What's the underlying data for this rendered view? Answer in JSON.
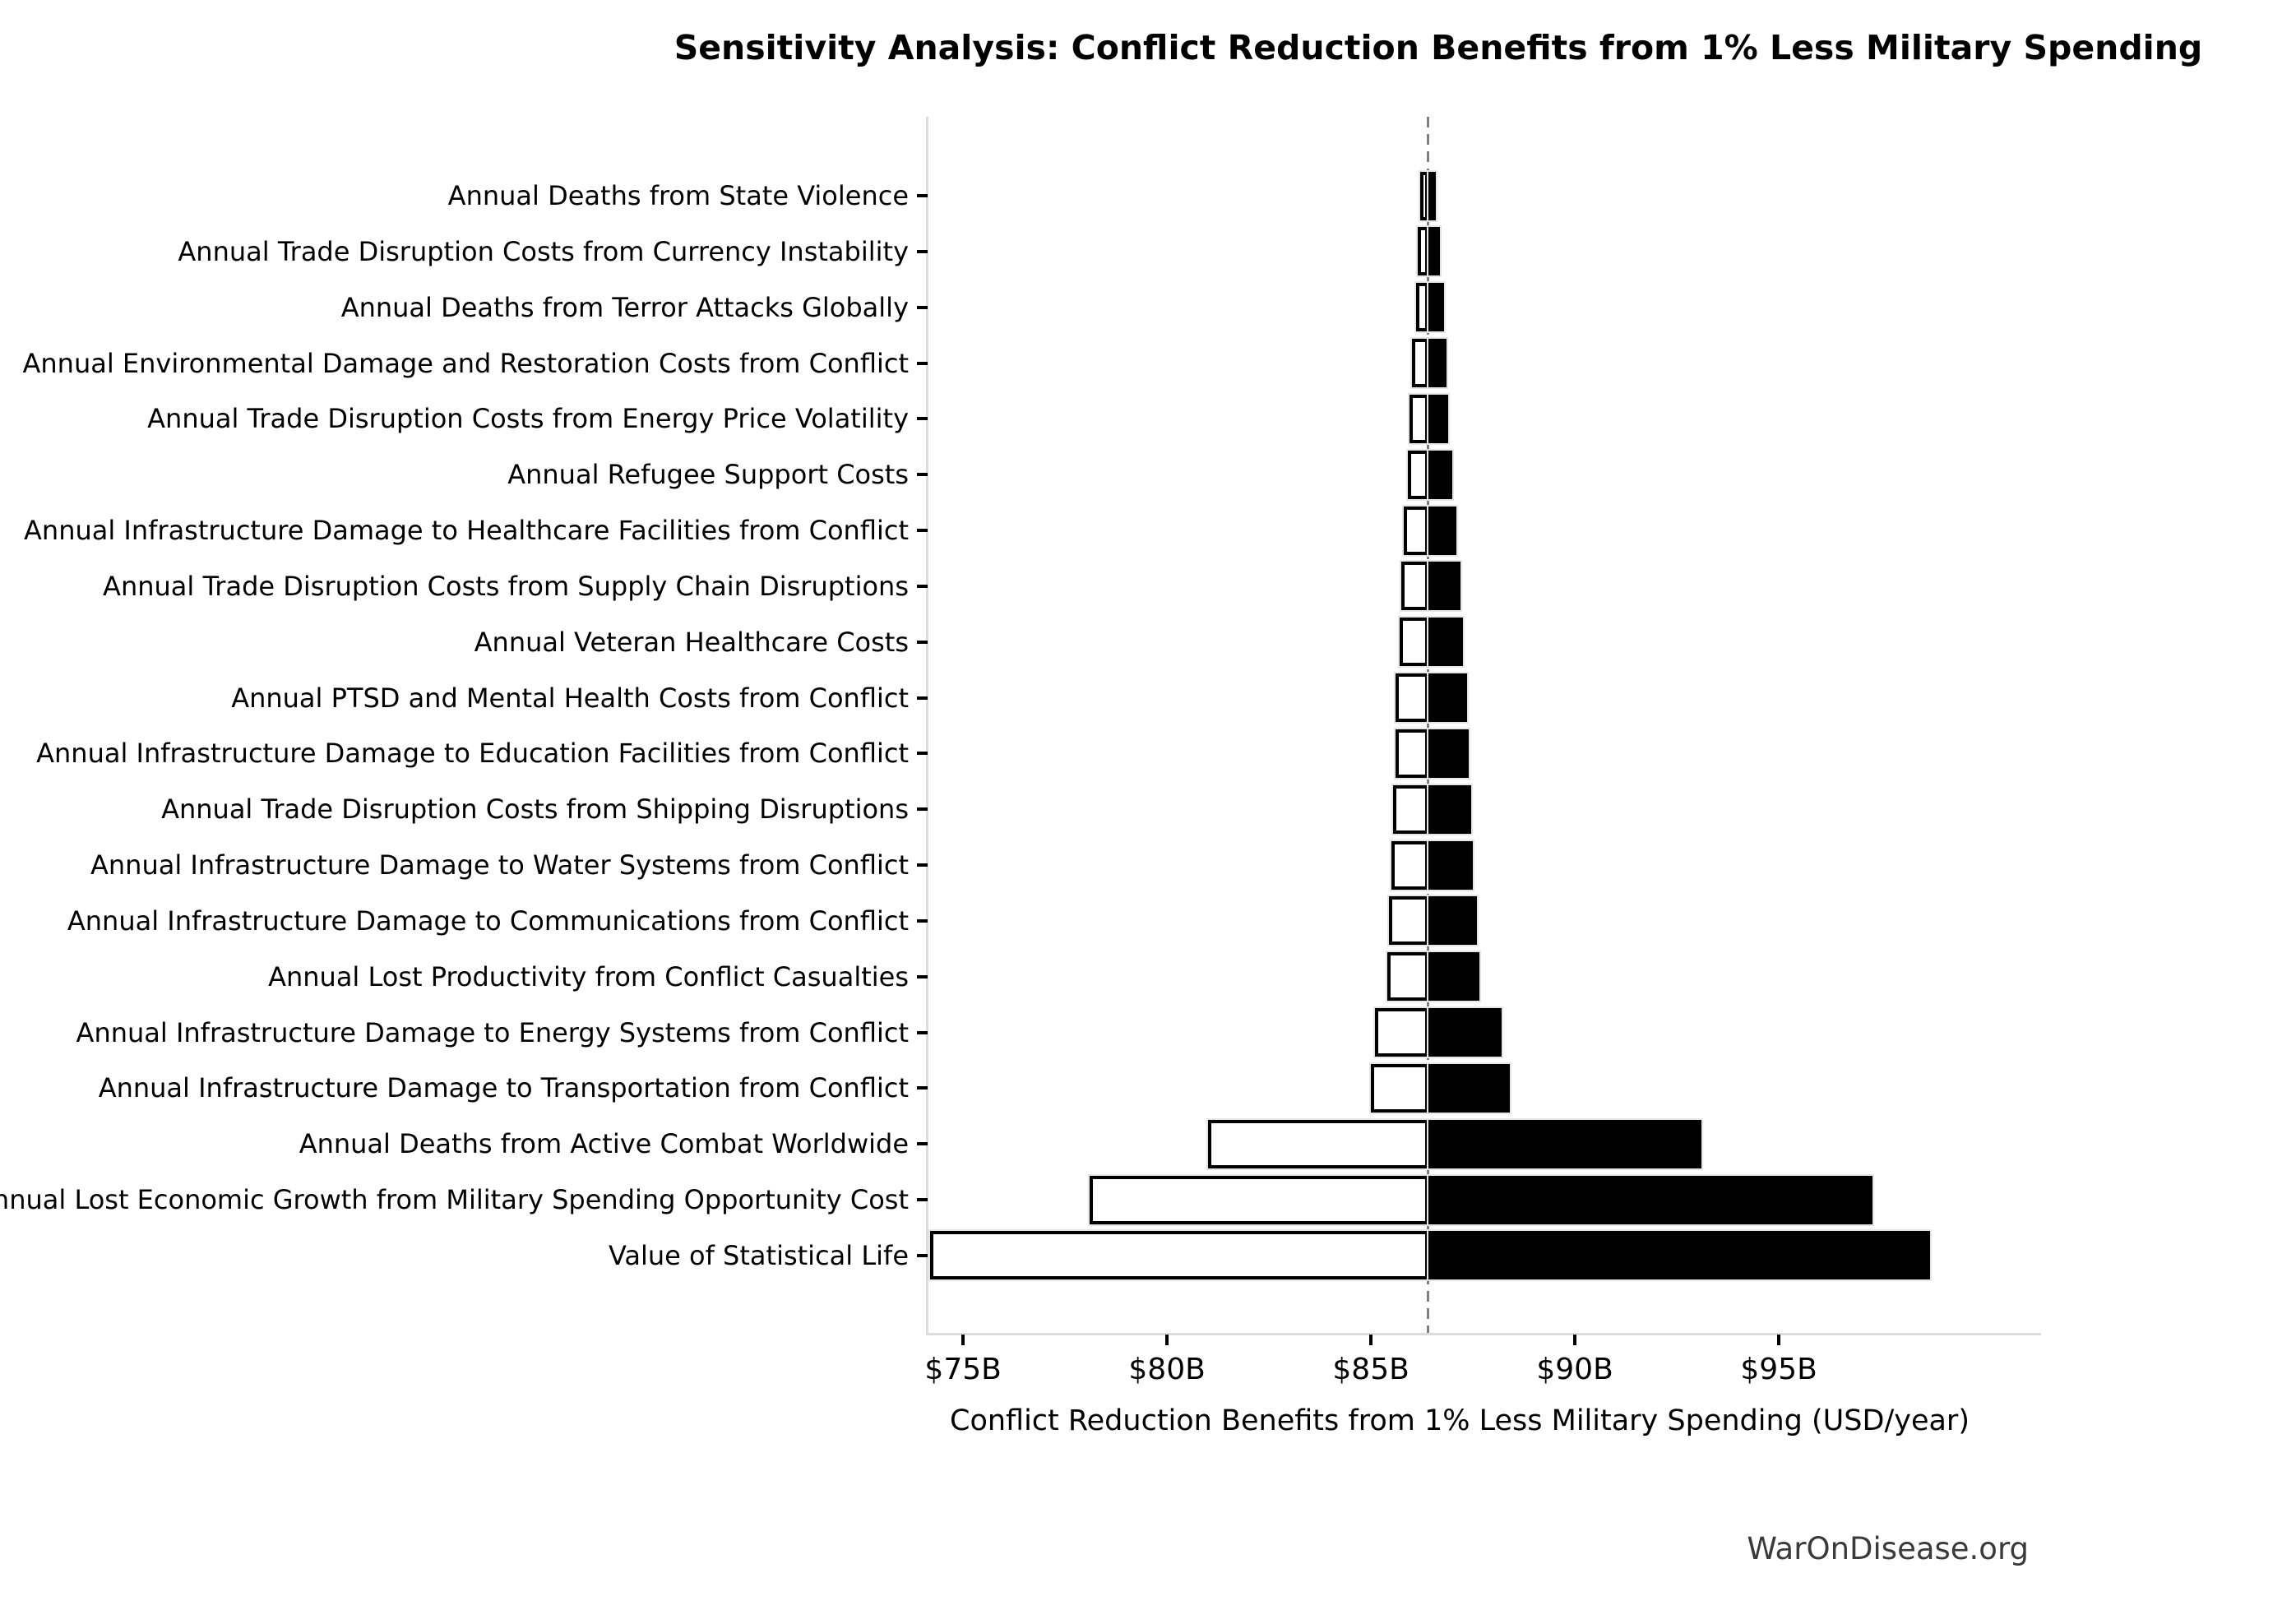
{
  "chart_data": {
    "type": "bar",
    "variant": "tornado-sensitivity",
    "orientation": "horizontal",
    "title": "Sensitivity Analysis: Conflict Reduction Benefits from 1% Less Military Spending",
    "xlabel": "Conflict Reduction Benefits from 1% Less Military Spending (USD/year)",
    "watermark": "WarOnDisease.org",
    "baseline_value": 86.4,
    "xlim": [
      74.13,
      101.39
    ],
    "grid": false,
    "legend": false,
    "x_ticks": [
      {
        "value": 75,
        "label": "$75B"
      },
      {
        "value": 80,
        "label": "$80B"
      },
      {
        "value": 85,
        "label": "$85B"
      },
      {
        "value": 90,
        "label": "$90B"
      },
      {
        "value": 95,
        "label": "$95B"
      }
    ],
    "bars": [
      {
        "label": "Annual Deaths from State Violence",
        "low": 86.2,
        "high": 86.6
      },
      {
        "label": "Annual Trade Disruption Costs from Currency Instability",
        "low": 86.15,
        "high": 86.7
      },
      {
        "label": "Annual Deaths from Terror Attacks Globally",
        "low": 86.1,
        "high": 86.8
      },
      {
        "label": "Annual Environmental Damage and Restoration Costs from Conflict",
        "low": 86.0,
        "high": 86.85
      },
      {
        "label": "Annual Trade Disruption Costs from Energy Price Volatility",
        "low": 85.95,
        "high": 86.9
      },
      {
        "label": "Annual Refugee Support Costs",
        "low": 85.9,
        "high": 87.0
      },
      {
        "label": "Annual Infrastructure Damage to Healthcare Facilities from Conflict",
        "low": 85.8,
        "high": 87.1
      },
      {
        "label": "Annual Trade Disruption Costs from Supply Chain Disruptions",
        "low": 85.75,
        "high": 87.2
      },
      {
        "label": "Annual Veteran Healthcare Costs",
        "low": 85.7,
        "high": 87.25
      },
      {
        "label": "Annual PTSD and Mental Health Costs from Conflict",
        "low": 85.6,
        "high": 87.35
      },
      {
        "label": "Annual Infrastructure Damage to Education Facilities from Conflict",
        "low": 85.6,
        "high": 87.4
      },
      {
        "label": "Annual Trade Disruption Costs from Shipping Disruptions",
        "low": 85.55,
        "high": 87.45
      },
      {
        "label": "Annual Infrastructure Damage to Water Systems from Conflict",
        "low": 85.5,
        "high": 87.5
      },
      {
        "label": "Annual Infrastructure Damage to Communications from Conflict",
        "low": 85.45,
        "high": 87.6
      },
      {
        "label": "Annual Lost Productivity from Conflict Casualties",
        "low": 85.4,
        "high": 87.65
      },
      {
        "label": "Annual Infrastructure Damage to Energy Systems from Conflict",
        "low": 85.1,
        "high": 88.2
      },
      {
        "label": "Annual Infrastructure Damage to Transportation from Conflict",
        "low": 85.0,
        "high": 88.4
      },
      {
        "label": "Annual Deaths from Active Combat Worldwide",
        "low": 81.0,
        "high": 93.1
      },
      {
        "label": "Annual Lost Economic Growth from Military Spending Opportunity Cost",
        "low": 78.1,
        "high": 97.3
      },
      {
        "label": "Value of Statistical Life",
        "low": 74.2,
        "high": 98.7
      }
    ],
    "colors": {
      "low_fill": "#ffffff",
      "high_fill": "#000000",
      "bar_edge": "#000000",
      "baseline_line": "#7f7f7f",
      "spine": "#dcdcdc",
      "text": "#000000",
      "watermark_text": "#3a3a3a"
    }
  }
}
